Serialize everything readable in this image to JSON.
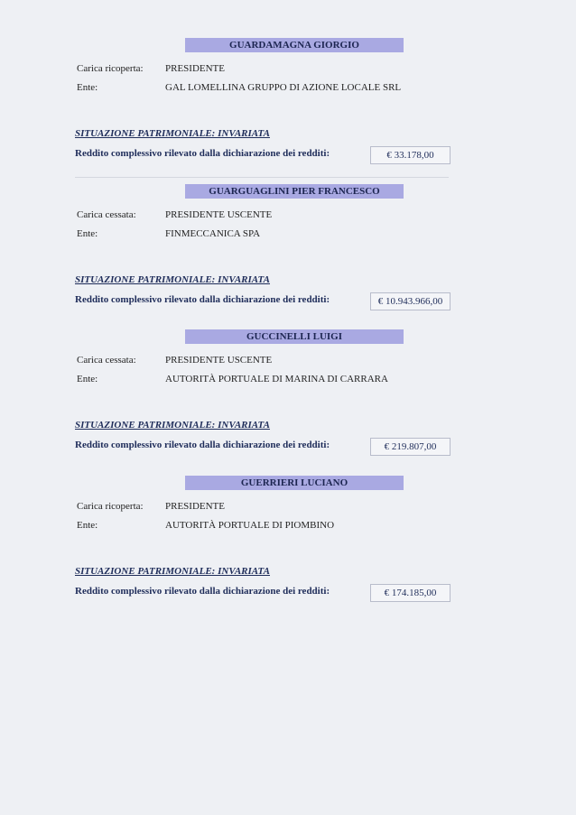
{
  "records": [
    {
      "name": "GUARDAMAGNA GIORGIO",
      "fields": [
        {
          "label": "Carica ricoperta:",
          "value": "PRESIDENTE"
        },
        {
          "label": "Ente:",
          "value": "GAL LOMELLINA GRUPPO DI AZIONE LOCALE SRL"
        }
      ],
      "status": "SITUAZIONE PATRIMONIALE: INVARIATA",
      "income_label": "Reddito complessivo rilevato dalla dichiarazione dei redditi:",
      "income": "€ 33.178,00"
    },
    {
      "name": "GUARGUAGLINI PIER FRANCESCO",
      "fields": [
        {
          "label": "Carica cessata:",
          "value": "PRESIDENTE USCENTE"
        },
        {
          "label": "Ente:",
          "value": "FINMECCANICA SPA"
        }
      ],
      "status": "SITUAZIONE PATRIMONIALE: INVARIATA",
      "income_label": "Reddito complessivo rilevato dalla dichiarazione dei redditi:",
      "income": "€ 10.943.966,00"
    },
    {
      "name": "GUCCINELLI LUIGI",
      "fields": [
        {
          "label": "Carica cessata:",
          "value": "PRESIDENTE USCENTE"
        },
        {
          "label": "Ente:",
          "value": "AUTORITÀ PORTUALE DI MARINA DI CARRARA"
        }
      ],
      "status": "SITUAZIONE PATRIMONIALE: INVARIATA",
      "income_label": "Reddito complessivo rilevato dalla dichiarazione dei redditi:",
      "income": "€ 219.807,00"
    },
    {
      "name": "GUERRIERI LUCIANO",
      "fields": [
        {
          "label": "Carica ricoperta:",
          "value": "PRESIDENTE"
        },
        {
          "label": "Ente:",
          "value": "AUTORITÀ PORTUALE DI PIOMBINO"
        }
      ],
      "status": "SITUAZIONE PATRIMONIALE: INVARIATA",
      "income_label": "Reddito complessivo rilevato dalla dichiarazione dei redditi:",
      "income": "€ 174.185,00"
    }
  ]
}
